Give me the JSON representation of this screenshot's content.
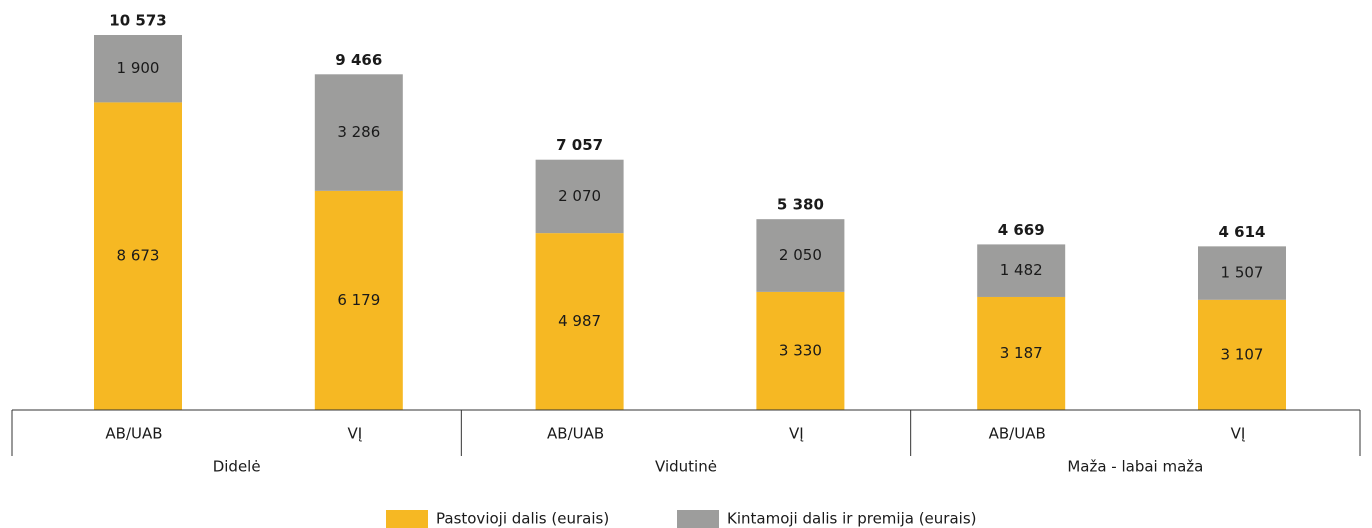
{
  "chart_data": {
    "type": "stacked_bar",
    "categories": [
      "AB/UAB",
      "VĮ",
      "AB/UAB",
      "VĮ",
      "AB/UAB",
      "VĮ"
    ],
    "groups": [
      "Didelė",
      "Vidutinė",
      "Maža - labai maža"
    ],
    "series": [
      {
        "name": "Pastovioji dalis (eurais)",
        "color": "#f6b823",
        "values": [
          8673,
          6179,
          4987,
          3330,
          3187,
          3107
        ],
        "value_labels": [
          "8 673",
          "6 179",
          "4 987",
          "3 330",
          "3 187",
          "3 107"
        ]
      },
      {
        "name": "Kintamoji dalis ir premija (eurais)",
        "color": "#9d9d9c",
        "values": [
          1900,
          3286,
          2070,
          2050,
          1482,
          1507
        ],
        "value_labels": [
          "1 900",
          "3 286",
          "2 070",
          "2 050",
          "1 482",
          "1 507"
        ]
      }
    ],
    "totals": [
      10573,
      9466,
      7057,
      5380,
      4669,
      4614
    ],
    "total_labels": [
      "10 573",
      "9 466",
      "7 057",
      "5 380",
      "4 669",
      "4 614"
    ]
  }
}
